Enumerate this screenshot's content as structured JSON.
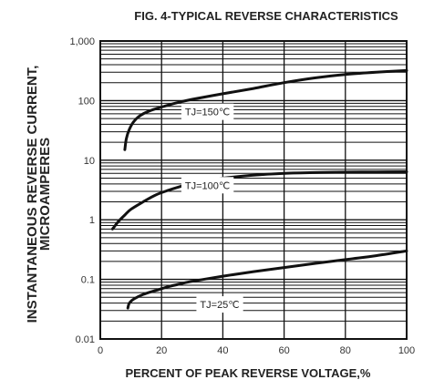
{
  "chart_data": {
    "type": "line",
    "title": "FIG. 4-TYPICAL REVERSE CHARACTERISTICS",
    "xlabel": "PERCENT OF PEAK REVERSE VOLTAGE,%",
    "ylabel_lines": [
      "INSTANTANEOUS REVERSE CURRENT,",
      "MICROAMPERES"
    ],
    "xlim": [
      0,
      100
    ],
    "ylim": [
      0.01,
      1000
    ],
    "yscale": "log",
    "grid": true,
    "x_ticks": [
      "0",
      "20",
      "40",
      "60",
      "80",
      "100"
    ],
    "y_ticks": [
      "0.01",
      "0.1",
      "1",
      "10",
      "100",
      "1,000"
    ],
    "series": [
      {
        "name": "TJ=150℃",
        "label_at": [
          35,
          65
        ],
        "points": [
          [
            8,
            15
          ],
          [
            8.5,
            23
          ],
          [
            9.5,
            33
          ],
          [
            11,
            45
          ],
          [
            13,
            56
          ],
          [
            16,
            67
          ],
          [
            20,
            78
          ],
          [
            25,
            92
          ],
          [
            30,
            105
          ],
          [
            40,
            130
          ],
          [
            50,
            160
          ],
          [
            60,
            200
          ],
          [
            70,
            240
          ],
          [
            80,
            275
          ],
          [
            90,
            300
          ],
          [
            100,
            320
          ]
        ]
      },
      {
        "name": "TJ=100℃",
        "label_at": [
          35,
          3.8
        ],
        "points": [
          [
            4,
            0.7
          ],
          [
            6,
            0.95
          ],
          [
            8,
            1.2
          ],
          [
            10,
            1.5
          ],
          [
            14,
            2.0
          ],
          [
            18,
            2.6
          ],
          [
            22,
            3.1
          ],
          [
            26,
            3.6
          ],
          [
            30,
            4.1
          ],
          [
            35,
            4.6
          ],
          [
            40,
            5.0
          ],
          [
            50,
            5.6
          ],
          [
            60,
            6.0
          ],
          [
            70,
            6.2
          ],
          [
            80,
            6.3
          ],
          [
            90,
            6.35
          ],
          [
            100,
            6.4
          ]
        ]
      },
      {
        "name": "TJ=25℃",
        "label_at": [
          39,
          0.038
        ],
        "points": [
          [
            9,
            0.033
          ],
          [
            9.5,
            0.04
          ],
          [
            11,
            0.047
          ],
          [
            14,
            0.056
          ],
          [
            18,
            0.065
          ],
          [
            22,
            0.075
          ],
          [
            26,
            0.084
          ],
          [
            30,
            0.093
          ],
          [
            40,
            0.113
          ],
          [
            50,
            0.135
          ],
          [
            60,
            0.158
          ],
          [
            70,
            0.185
          ],
          [
            80,
            0.215
          ],
          [
            90,
            0.25
          ],
          [
            100,
            0.3
          ]
        ]
      }
    ]
  }
}
